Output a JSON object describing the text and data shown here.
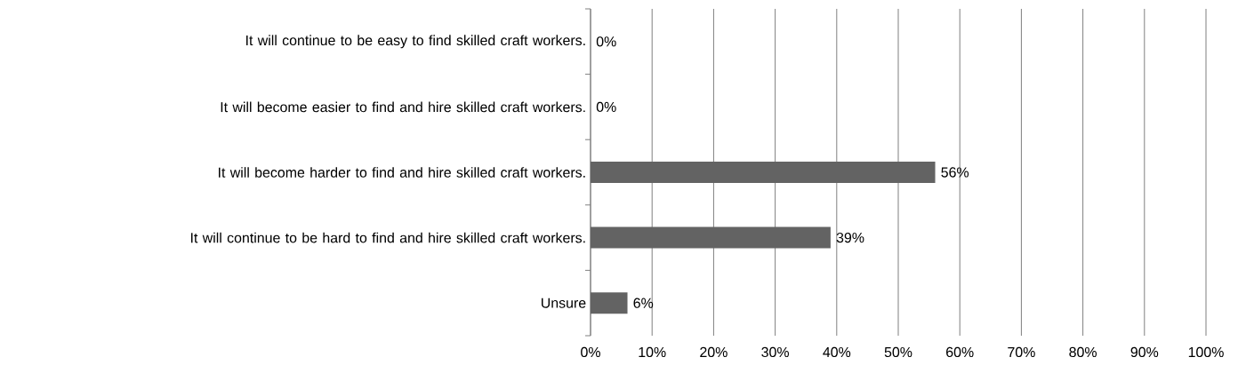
{
  "chart_data": {
    "type": "bar",
    "orientation": "horizontal",
    "categories": [
      "It will continue to be easy to find skilled craft workers.",
      "It will become easier to find and hire skilled craft workers.",
      "It will become harder to find and hire skilled craft workers.",
      "It will continue to be hard to find and hire skilled craft workers.",
      "Unsure"
    ],
    "values": [
      0,
      0,
      56,
      39,
      6
    ],
    "value_labels": [
      "0%",
      "0%",
      "56%",
      "39%",
      "6%"
    ],
    "color": "#636363",
    "xlim": [
      0,
      100
    ],
    "xticks": [
      {
        "value": 0,
        "label": "0%"
      },
      {
        "value": 10,
        "label": "10%"
      },
      {
        "value": 20,
        "label": "20%"
      },
      {
        "value": 30,
        "label": "30%"
      },
      {
        "value": 40,
        "label": "40%"
      },
      {
        "value": 50,
        "label": "50%"
      },
      {
        "value": 60,
        "label": "60%"
      },
      {
        "value": 70,
        "label": "70%"
      },
      {
        "value": 80,
        "label": "80%"
      },
      {
        "value": 90,
        "label": "90%"
      },
      {
        "value": 100,
        "label": "100%"
      }
    ],
    "grid": "x"
  }
}
